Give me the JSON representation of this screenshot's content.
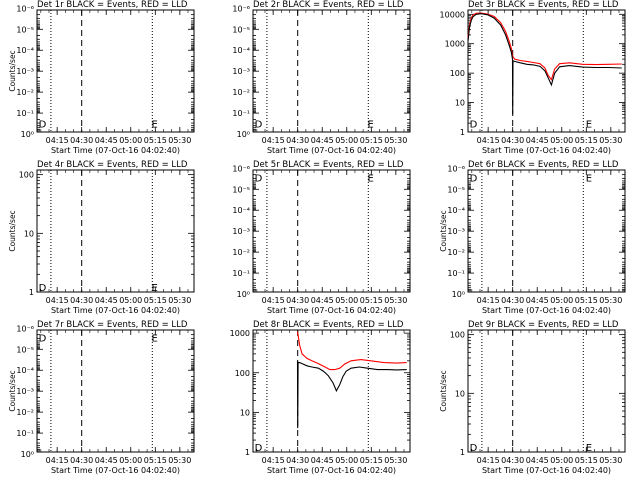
{
  "figure": {
    "title_suffix": "BLACK = Events, RED = LLD",
    "xlabel": "Start Time (07-Oct-16 04:02:40)",
    "ylabel": "Counts/sec",
    "x_tick_labels": [
      "04:15",
      "04:30",
      "04:45",
      "05:00",
      "05:15",
      "05:30"
    ],
    "x_tick_minutes": [
      12.33,
      27.33,
      42.33,
      57.33,
      72.33,
      87.33
    ],
    "xlim_minutes": [
      0,
      96
    ],
    "event_markers": {
      "D": 8.5,
      "E": 70.5
    }
  },
  "colors": {
    "events": "#000000",
    "lld": "#ff0000",
    "axes": "#000000",
    "background": "#ffffff"
  },
  "chart_data": [
    {
      "type": "line",
      "title": "Det 1r BLACK = Events, RED = LLD",
      "yscale": "log",
      "ylim": [
        0.8,
        1.2e-06
      ],
      "y_tick_labels": [
        "10⁰",
        "10⁻¹",
        "10⁻²",
        "10⁻³",
        "10⁻⁴",
        "10⁻⁵",
        "10⁻⁶"
      ],
      "y_tick_values": [
        1,
        0.1,
        0.01,
        0.001,
        0.0001,
        1e-05,
        1e-06
      ],
      "show_ylabel": true,
      "dotted_lines": [
        8.5,
        70.5
      ],
      "dashed_line": 27.33,
      "marker_labels": [
        {
          "text": "D",
          "x": 1,
          "y": 0.93
        },
        {
          "text": "E",
          "x": 70,
          "y": 0.93
        }
      ],
      "series": []
    },
    {
      "type": "line",
      "title": "Det 2r BLACK = Events, RED = LLD",
      "yscale": "log",
      "ylim": [
        0.8,
        1.2e-06
      ],
      "y_tick_labels": [
        "10⁰",
        "10⁻¹",
        "10⁻²",
        "10⁻³",
        "10⁻⁴",
        "10⁻⁵",
        "10⁻⁶"
      ],
      "y_tick_values": [
        1,
        0.1,
        0.01,
        0.001,
        0.0001,
        1e-05,
        1e-06
      ],
      "show_ylabel": false,
      "dotted_lines": [
        8.5,
        70.5
      ],
      "dashed_line": 27.33,
      "marker_labels": [
        {
          "text": "D",
          "x": 1,
          "y": 0.93
        },
        {
          "text": "E",
          "x": 70,
          "y": 0.93
        }
      ],
      "series": []
    },
    {
      "type": "line",
      "title": "Det 3r BLACK = Events, RED = LLD",
      "yscale": "log",
      "ylim": [
        1,
        14000
      ],
      "y_tick_labels": [
        "1",
        "10",
        "100",
        "1000",
        "10000"
      ],
      "y_tick_values": [
        1,
        10,
        100,
        1000,
        10000
      ],
      "show_ylabel": false,
      "dotted_lines": [
        8.5,
        70.5
      ],
      "dashed_line": 27.33,
      "marker_labels": [
        {
          "text": "D",
          "x": 1,
          "y": 0.93
        },
        {
          "text": "E",
          "x": 72,
          "y": 0.93
        }
      ],
      "series": [
        {
          "name": "LLD",
          "color": "#ff0000",
          "x": [
            0,
            1,
            2,
            3,
            5,
            8,
            12,
            16,
            20,
            23,
            25,
            26.5,
            27.3,
            28.5,
            32,
            36,
            40,
            44,
            47,
            49,
            51,
            53,
            56,
            62,
            70,
            78,
            86,
            94
          ],
          "y": [
            1600,
            4500,
            7500,
            9500,
            10800,
            11000,
            10200,
            8400,
            5200,
            2600,
            1300,
            700,
            380,
            300,
            270,
            250,
            230,
            210,
            150,
            85,
            60,
            140,
            210,
            225,
            200,
            195,
            200,
            205
          ]
        },
        {
          "name": "Events",
          "color": "#000000",
          "x": [
            0,
            1,
            2,
            3,
            5,
            8,
            12,
            16,
            20,
            23,
            25,
            26.5,
            27.2,
            27.35,
            27.5,
            28.5,
            32,
            36,
            40,
            44,
            47,
            49,
            51,
            53,
            56,
            62,
            70,
            78,
            86,
            94
          ],
          "y": [
            1200,
            3800,
            6200,
            8200,
            10000,
            10500,
            9600,
            7400,
            4300,
            2000,
            950,
            520,
            300,
            4,
            260,
            250,
            225,
            200,
            190,
            170,
            120,
            70,
            40,
            100,
            165,
            180,
            160,
            155,
            155,
            150
          ]
        }
      ]
    },
    {
      "type": "line",
      "title": "Det 4r BLACK = Events, RED = LLD",
      "yscale": "log",
      "ylim": [
        1,
        120
      ],
      "y_tick_labels": [
        "1",
        "10",
        "100"
      ],
      "y_tick_values": [
        1,
        10,
        100
      ],
      "show_ylabel": true,
      "dotted_lines": [
        8.5,
        70.5
      ],
      "dashed_line": 27.33,
      "marker_labels": [
        {
          "text": "D",
          "x": 1,
          "y": 0.96
        },
        {
          "text": "E",
          "x": 70,
          "y": 0.96
        }
      ],
      "series": []
    },
    {
      "type": "line",
      "title": "Det 5r BLACK = Events, RED = LLD",
      "yscale": "log",
      "ylim": [
        0.8,
        1.2e-06
      ],
      "y_tick_labels": [
        "10⁰",
        "10⁻¹",
        "10⁻²",
        "10⁻³",
        "10⁻⁴",
        "10⁻⁵",
        "10⁻⁶"
      ],
      "y_tick_values": [
        1,
        0.1,
        0.01,
        0.001,
        0.0001,
        1e-05,
        1e-06
      ],
      "show_ylabel": false,
      "dotted_lines": [
        8.5,
        70.5
      ],
      "dashed_line": 27.33,
      "marker_labels": [
        {
          "text": "D",
          "x": 1,
          "y": 0.06
        },
        {
          "text": "E",
          "x": 70,
          "y": 0.06
        }
      ],
      "series": []
    },
    {
      "type": "line",
      "title": "Det 6r BLACK = Events, RED = LLD",
      "yscale": "log",
      "ylim": [
        0.8,
        1.2e-06
      ],
      "y_tick_labels": [
        "10⁰",
        "10⁻¹",
        "10⁻²",
        "10⁻³",
        "10⁻⁴",
        "10⁻⁵",
        "10⁻⁶"
      ],
      "y_tick_values": [
        1,
        0.1,
        0.01,
        0.001,
        0.0001,
        1e-05,
        1e-06
      ],
      "show_ylabel": true,
      "dotted_lines": [
        8.5,
        70.5
      ],
      "dashed_line": 27.33,
      "marker_labels": [
        {
          "text": "D",
          "x": 1,
          "y": 0.06
        },
        {
          "text": "E",
          "x": 72,
          "y": 0.06
        }
      ],
      "series": []
    },
    {
      "type": "line",
      "title": "Det 7r BLACK = Events, RED = LLD",
      "yscale": "log",
      "ylim": [
        0.8,
        1.2e-06
      ],
      "y_tick_labels": [
        "10⁰",
        "10⁻¹",
        "10⁻²",
        "10⁻³",
        "10⁻⁴",
        "10⁻⁵",
        "10⁻⁶"
      ],
      "y_tick_values": [
        1,
        0.1,
        0.01,
        0.001,
        0.0001,
        1e-05,
        1e-06
      ],
      "show_ylabel": true,
      "dotted_lines": [
        8.5,
        70.5
      ],
      "dashed_line": 27.33,
      "marker_labels": [
        {
          "text": "D",
          "x": 1,
          "y": 0.06
        },
        {
          "text": "E",
          "x": 70,
          "y": 0.06
        }
      ],
      "series": []
    },
    {
      "type": "line",
      "title": "Det 8r BLACK = Events, RED = LLD",
      "yscale": "log",
      "ylim": [
        1,
        1200
      ],
      "y_tick_labels": [
        "1",
        "10",
        "100",
        "1000"
      ],
      "y_tick_values": [
        1,
        10,
        100,
        1000
      ],
      "show_ylabel": false,
      "dotted_lines": [
        8.5,
        70.5
      ],
      "dashed_line": 27.33,
      "marker_labels": [
        {
          "text": "D",
          "x": 1,
          "y": 0.96
        }
      ],
      "series": [
        {
          "name": "LLD",
          "color": "#ff0000",
          "x": [
            27.2,
            27.6,
            28.5,
            30,
            33,
            36,
            40,
            44,
            47,
            50,
            53,
            56,
            60,
            66,
            72,
            80,
            88,
            94
          ],
          "y": [
            1100,
            900,
            500,
            300,
            230,
            200,
            170,
            140,
            120,
            120,
            130,
            165,
            200,
            215,
            200,
            180,
            175,
            180
          ]
        },
        {
          "name": "Events",
          "color": "#000000",
          "x": [
            27.2,
            27.35,
            27.6,
            28.5,
            30,
            33,
            36,
            40,
            43,
            46,
            49,
            51,
            53,
            55,
            57,
            60,
            65,
            70,
            76,
            82,
            88,
            94
          ],
          "y": [
            200,
            4,
            180,
            180,
            170,
            150,
            140,
            130,
            110,
            85,
            55,
            35,
            50,
            80,
            110,
            130,
            140,
            130,
            120,
            120,
            118,
            120
          ]
        }
      ]
    },
    {
      "type": "line",
      "title": "Det 9r BLACK = Events, RED = LLD",
      "yscale": "log",
      "ylim": [
        1,
        120
      ],
      "y_tick_labels": [
        "1",
        "10",
        "100"
      ],
      "y_tick_values": [
        1,
        10,
        100
      ],
      "show_ylabel": true,
      "dotted_lines": [
        8.5,
        70.5
      ],
      "dashed_line": 27.33,
      "marker_labels": [
        {
          "text": "D",
          "x": 1,
          "y": 0.96
        },
        {
          "text": "E",
          "x": 72,
          "y": 0.96
        }
      ],
      "series": []
    }
  ]
}
